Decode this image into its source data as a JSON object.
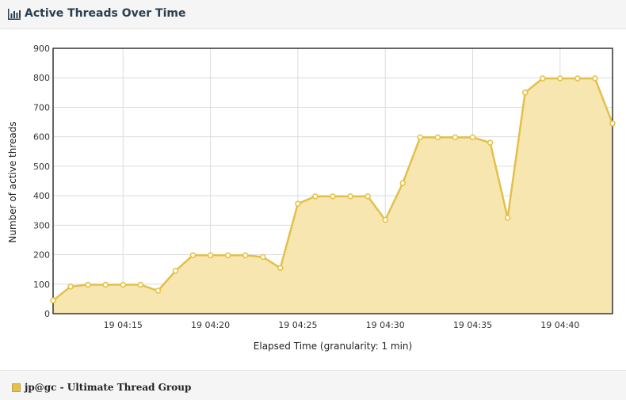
{
  "header": {
    "title": "Active Threads Over Time",
    "icon": "bar-chart-icon"
  },
  "legend": {
    "label": "jp@gc - Ultimate Thread Group",
    "color": "#e8c144"
  },
  "colors": {
    "line": "#e2c04a",
    "fill": "#f8e6b0",
    "point_fill": "#fffbe8"
  },
  "chart_data": {
    "type": "area",
    "title": "",
    "xlabel": "Elapsed Time (granularity: 1 min)",
    "ylabel": "Number of active threads",
    "x_unit": "minute",
    "x_ticks": [
      "19 04:15",
      "19 04:20",
      "19 04:25",
      "19 04:30",
      "19 04:35",
      "19 04:40"
    ],
    "y_ticks": [
      0,
      100,
      200,
      300,
      400,
      500,
      600,
      700,
      800,
      900
    ],
    "xlim": [
      "19 04:11",
      "19 04:43"
    ],
    "ylim": [
      0,
      900
    ],
    "grid": true,
    "series": [
      {
        "name": "jp@gc - Ultimate Thread Group",
        "x": [
          "19 04:11",
          "19 04:12",
          "19 04:13",
          "19 04:14",
          "19 04:15",
          "19 04:16",
          "19 04:17",
          "19 04:18",
          "19 04:19",
          "19 04:20",
          "19 04:21",
          "19 04:22",
          "19 04:23",
          "19 04:24",
          "19 04:25",
          "19 04:26",
          "19 04:27",
          "19 04:28",
          "19 04:29",
          "19 04:30",
          "19 04:31",
          "19 04:32",
          "19 04:33",
          "19 04:34",
          "19 04:35",
          "19 04:36",
          "19 04:37",
          "19 04:38",
          "19 04:39",
          "19 04:40",
          "19 04:41",
          "19 04:42",
          "19 04:43"
        ],
        "values": [
          45,
          92,
          98,
          98,
          98,
          98,
          78,
          145,
          198,
          198,
          198,
          198,
          192,
          155,
          373,
          398,
          398,
          398,
          398,
          318,
          443,
          598,
          598,
          598,
          598,
          580,
          325,
          750,
          798,
          798,
          798,
          798,
          645
        ]
      }
    ]
  }
}
